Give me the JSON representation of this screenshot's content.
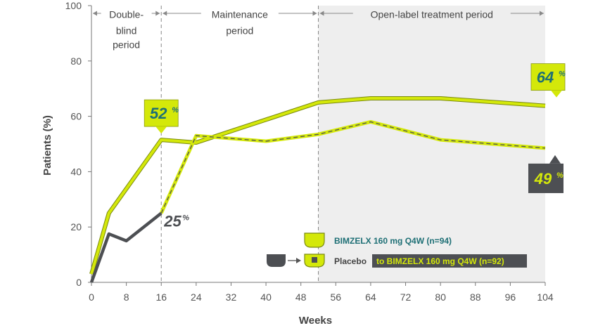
{
  "chart_data": {
    "type": "line",
    "xlabel": "Weeks",
    "ylabel": "Patients (%)",
    "xlim": [
      0,
      104
    ],
    "ylim": [
      0,
      100
    ],
    "xticks": [
      0,
      8,
      16,
      24,
      32,
      40,
      48,
      56,
      64,
      72,
      80,
      88,
      96,
      104
    ],
    "yticks": [
      0,
      20,
      40,
      60,
      80,
      100
    ],
    "periods": [
      {
        "label_lines": [
          "Double-",
          "blind",
          "period"
        ],
        "from": 0,
        "to": 16
      },
      {
        "label_lines": [
          "Maintenance",
          "period"
        ],
        "from": 16,
        "to": 52
      },
      {
        "label_lines": [
          "Open-label treatment period"
        ],
        "from": 52,
        "to": 104
      }
    ],
    "series": [
      {
        "name": "BIMZELX 160 mg Q4W (n=94)",
        "color": "#d4e80a",
        "points": [
          [
            0,
            3
          ],
          [
            4,
            25
          ],
          [
            16,
            51.5
          ],
          [
            24,
            50.5
          ],
          [
            52,
            65
          ],
          [
            64,
            66.5
          ],
          [
            80,
            66.5
          ],
          [
            104,
            63.8
          ]
        ]
      },
      {
        "name": "Placebo",
        "color": "#4d4f53",
        "points": [
          [
            0,
            0
          ],
          [
            4,
            17.5
          ],
          [
            8,
            15
          ],
          [
            16,
            25
          ]
        ]
      },
      {
        "name": "to BIMZELX 160 mg Q4W (n=92)",
        "color": "#d4e80a",
        "dashed_outline": true,
        "points": [
          [
            16,
            25
          ],
          [
            24,
            53
          ],
          [
            40,
            51
          ],
          [
            52,
            53.5
          ],
          [
            64,
            58
          ],
          [
            80,
            51.5
          ],
          [
            104,
            48.5
          ]
        ]
      }
    ],
    "annotations": [
      {
        "text": "52",
        "sup": "%",
        "style": "callout-green",
        "x": 16,
        "y": 51.5
      },
      {
        "text": "64",
        "sup": "%",
        "style": "callout-green",
        "x": 104,
        "y": 63.8
      },
      {
        "text": "25",
        "sup": "%",
        "style": "plain",
        "x": 16,
        "y": 25
      },
      {
        "text": "49",
        "sup": "%",
        "style": "callout-gray",
        "x": 104,
        "y": 48.5
      }
    ],
    "legend": {
      "bimzelx_label": "BIMZELX 160 mg Q4W (n=94)",
      "placebo_label": "Placebo",
      "switch_label": "to BIMZELX 160 mg Q4W (n=92)",
      "placement": "bottom-right"
    },
    "colors": {
      "lime": "#d4e80a",
      "dark": "#4d4f53",
      "teal": "#1e6f75",
      "shade": "#eeeeee",
      "grid_divider": "#888888"
    }
  }
}
